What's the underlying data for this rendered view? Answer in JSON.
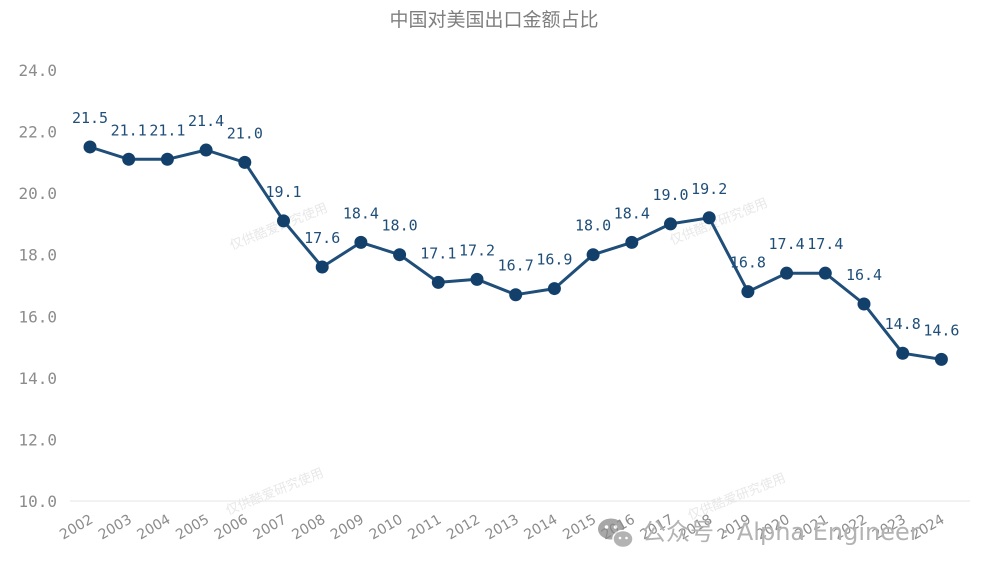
{
  "chart_data": {
    "type": "line",
    "title": "中国对美国出口金额占比",
    "xlabel": "",
    "ylabel": "",
    "ylim": [
      10,
      24
    ],
    "yticks": [
      "24.0",
      "22.0",
      "20.0",
      "18.0",
      "16.0",
      "14.0",
      "12.0",
      "10.0"
    ],
    "grid": false,
    "legend": "none",
    "categories": [
      "2002",
      "2003",
      "2004",
      "2005",
      "2006",
      "2007",
      "2008",
      "2009",
      "2010",
      "2011",
      "2012",
      "2013",
      "2014",
      "2015",
      "2016",
      "2017",
      "2018",
      "2019",
      "2020",
      "2021",
      "2022",
      "2023",
      "2024"
    ],
    "series": [
      {
        "values": [
          21.5,
          21.1,
          21.1,
          21.4,
          21.0,
          19.1,
          17.6,
          18.4,
          18.0,
          17.1,
          17.2,
          16.7,
          16.9,
          18.0,
          18.4,
          19.0,
          19.2,
          16.8,
          17.4,
          17.4,
          16.4,
          14.8,
          14.6
        ],
        "labels": [
          "21.5",
          "21.1",
          "21.1",
          "21.4",
          "21.0",
          "19.1",
          "17.6",
          "18.4",
          "18.0",
          "17.1",
          "17.2",
          "16.7",
          "16.9",
          "18.0",
          "18.4",
          "19.0",
          "19.2",
          "16.8",
          "17.4",
          "17.4",
          "16.4",
          "14.8",
          "14.6"
        ]
      }
    ],
    "colors": {
      "line": "#1f4e79",
      "marker": "#12406b"
    }
  },
  "watermark": {
    "text": "公众号 · Alpha Engineer",
    "icon": "wechat-icon",
    "faint_text": "仅供酷爱研究使用"
  }
}
